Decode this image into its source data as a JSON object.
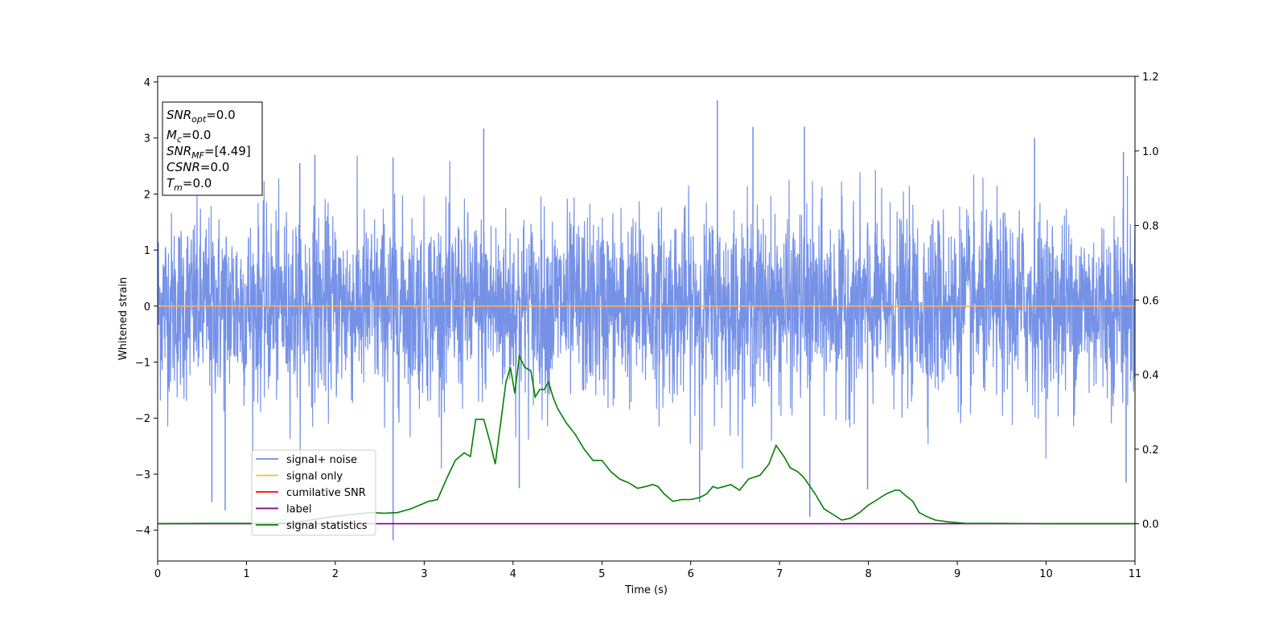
{
  "chart_data": {
    "type": "line",
    "xlabel": "Time (s)",
    "ylabel_left": "Whitened strain",
    "ylabel_right": "",
    "xlim": [
      0,
      11
    ],
    "ylim_left": [
      -4.55,
      4.1
    ],
    "ylim_right": [
      -0.1,
      1.2
    ],
    "x_ticks": [
      0,
      1,
      2,
      3,
      4,
      5,
      6,
      7,
      8,
      9,
      10,
      11
    ],
    "y_ticks_left": [
      -4,
      -3,
      -2,
      -1,
      0,
      1,
      2,
      3,
      4
    ],
    "y_ticks_right": [
      0.0,
      0.2,
      0.4,
      0.6,
      0.8,
      1.0,
      1.2
    ],
    "grid": false,
    "legend_position": "lower-left",
    "info_box": [
      {
        "base": "SNR",
        "sub": "opt",
        "rest": "=0.0"
      },
      {
        "base": "M",
        "sub": "c",
        "rest": "=0.0"
      },
      {
        "base": "SNR",
        "sub": "MF",
        "rest": "=[4.49]"
      },
      {
        "base": "CSNR",
        "sub": "",
        "rest": "=0.0"
      },
      {
        "base": "T",
        "sub": "m",
        "rest": "=0.0"
      }
    ],
    "series": [
      {
        "name": "signal+ noise",
        "color": "#6f8ce6",
        "axis": "left",
        "description_kind": "whitened noise, std ~0.9, range approx [-4.2, 3.7]",
        "spikes": [
          {
            "x": 0.61,
            "y": -3.5
          },
          {
            "x": 0.76,
            "y": -3.65
          },
          {
            "x": 1.6,
            "y": 2.55
          },
          {
            "x": 1.77,
            "y": 2.7
          },
          {
            "x": 2.65,
            "y": 2.65
          },
          {
            "x": 2.65,
            "y": -4.18
          },
          {
            "x": 3.67,
            "y": 3.17
          },
          {
            "x": 4.07,
            "y": -3.25
          },
          {
            "x": 6.1,
            "y": -3.5
          },
          {
            "x": 6.3,
            "y": 3.67
          },
          {
            "x": 6.7,
            "y": 3.2
          },
          {
            "x": 7.28,
            "y": 3.2
          },
          {
            "x": 7.34,
            "y": -3.76
          },
          {
            "x": 7.99,
            "y": -3.27
          },
          {
            "x": 9.87,
            "y": 3.0
          },
          {
            "x": 10.87,
            "y": 2.75
          },
          {
            "x": 10.9,
            "y": -3.15
          }
        ]
      },
      {
        "name": "signal only",
        "color": "#ffb347",
        "axis": "left",
        "x": [
          0,
          11
        ],
        "y": [
          0,
          0
        ]
      },
      {
        "name": "cumilative SNR",
        "color": "#ff0000",
        "axis": "right",
        "x": [],
        "y": []
      },
      {
        "name": "label",
        "color": "#800080",
        "axis": "right",
        "x": [
          0,
          11
        ],
        "y": [
          0,
          0
        ]
      },
      {
        "name": "signal statistics",
        "color": "#008000",
        "axis": "right",
        "x": [
          0,
          0.5,
          1.0,
          1.5,
          2.0,
          2.2,
          2.4,
          2.55,
          2.7,
          2.85,
          2.95,
          3.05,
          3.15,
          3.25,
          3.35,
          3.45,
          3.52,
          3.58,
          3.67,
          3.74,
          3.8,
          3.86,
          3.92,
          3.97,
          4.02,
          4.07,
          4.13,
          4.2,
          4.25,
          4.3,
          4.35,
          4.4,
          4.45,
          4.5,
          4.6,
          4.7,
          4.8,
          4.9,
          5.0,
          5.1,
          5.2,
          5.3,
          5.4,
          5.5,
          5.57,
          5.63,
          5.7,
          5.8,
          5.9,
          6.0,
          6.1,
          6.18,
          6.25,
          6.3,
          6.38,
          6.45,
          6.55,
          6.65,
          6.78,
          6.88,
          6.96,
          7.05,
          7.12,
          7.2,
          7.27,
          7.4,
          7.5,
          7.6,
          7.7,
          7.8,
          7.9,
          8.0,
          8.1,
          8.2,
          8.3,
          8.35,
          8.42,
          8.5,
          8.57,
          8.65,
          8.75,
          8.9,
          9.1,
          9.5,
          10.0,
          11.0
        ],
        "y": [
          0.0,
          0.001,
          0.001,
          0.002,
          0.02,
          0.025,
          0.03,
          0.028,
          0.03,
          0.04,
          0.05,
          0.06,
          0.065,
          0.12,
          0.17,
          0.19,
          0.18,
          0.28,
          0.28,
          0.22,
          0.16,
          0.27,
          0.38,
          0.42,
          0.35,
          0.45,
          0.42,
          0.41,
          0.34,
          0.36,
          0.36,
          0.38,
          0.34,
          0.31,
          0.27,
          0.24,
          0.2,
          0.17,
          0.17,
          0.14,
          0.12,
          0.11,
          0.095,
          0.1,
          0.105,
          0.1,
          0.08,
          0.06,
          0.065,
          0.065,
          0.07,
          0.08,
          0.1,
          0.095,
          0.1,
          0.105,
          0.09,
          0.12,
          0.13,
          0.16,
          0.21,
          0.18,
          0.15,
          0.14,
          0.125,
          0.08,
          0.04,
          0.025,
          0.01,
          0.015,
          0.03,
          0.05,
          0.065,
          0.08,
          0.09,
          0.09,
          0.075,
          0.06,
          0.03,
          0.02,
          0.01,
          0.005,
          0.001,
          0.001,
          0.0,
          0.0
        ]
      }
    ]
  }
}
